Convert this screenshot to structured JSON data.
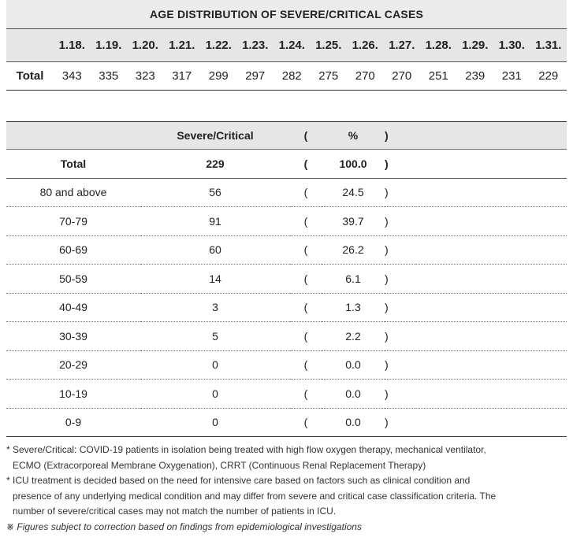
{
  "title": "AGE DISTRIBUTION OF SEVERE/CRITICAL CASES",
  "daily": {
    "dates": [
      "1.18.",
      "1.19.",
      "1.20.",
      "1.21.",
      "1.22.",
      "1.23.",
      "1.24.",
      "1.25.",
      "1.26.",
      "1.27.",
      "1.28.",
      "1.29.",
      "1.30.",
      "1.31."
    ],
    "row_label": "Total",
    "values": [
      "343",
      "335",
      "323",
      "317",
      "299",
      "297",
      "282",
      "275",
      "270",
      "270",
      "251",
      "239",
      "231",
      "229"
    ]
  },
  "age_table": {
    "headers": {
      "count": "Severe/Critical",
      "open_paren": "(",
      "pct": "%",
      "close_paren": ")"
    },
    "rows": [
      {
        "group": "Total",
        "count": "229",
        "open": "(",
        "pct": "100.0",
        "close": ")"
      },
      {
        "group": "80 and above",
        "count": "56",
        "open": "(",
        "pct": "24.5",
        "close": ")"
      },
      {
        "group": "70-79",
        "count": "91",
        "open": "(",
        "pct": "39.7",
        "close": ")"
      },
      {
        "group": "60-69",
        "count": "60",
        "open": "(",
        "pct": "26.2",
        "close": ")"
      },
      {
        "group": "50-59",
        "count": "14",
        "open": "(",
        "pct": "6.1",
        "close": ")"
      },
      {
        "group": "40-49",
        "count": "3",
        "open": "(",
        "pct": "1.3",
        "close": ")"
      },
      {
        "group": "30-39",
        "count": "5",
        "open": "(",
        "pct": "2.2",
        "close": ")"
      },
      {
        "group": "20-29",
        "count": "0",
        "open": "(",
        "pct": "0.0",
        "close": ")"
      },
      {
        "group": "10-19",
        "count": "0",
        "open": "(",
        "pct": "0.0",
        "close": ")"
      },
      {
        "group": "0-9",
        "count": "0",
        "open": "(",
        "pct": "0.0",
        "close": ")"
      }
    ]
  },
  "notes": {
    "note1_line1": "* Severe/Critical: COVID-19 patients in isolation being treated with high flow oxygen therapy, mechanical ventilator,",
    "note1_line2": "ECMO (Extracorporeal Membrane Oxygenation), CRRT (Continuous Renal Replacement Therapy)",
    "note2_line1": "* ICU treatment is decided based on the need for intensive care based on factors such as clinical condition and",
    "note2_line2": "presence of any underlying medical condition and may differ from severe and critical case classification criteria. The",
    "note2_line3": "number of severe/critical cases may not match the number of patients in ICU.",
    "note3": "※ Figures subject to correction based on findings from epidemiological investigations"
  }
}
